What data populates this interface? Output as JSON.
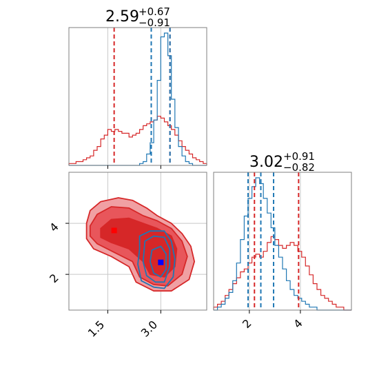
{
  "chart_data": {
    "type": "corner",
    "colors": {
      "red_series": "#d62728",
      "blue_series": "#1f77b4",
      "red_fill_light": "#f0a0a3",
      "red_fill_mid": "#e8565b",
      "red_fill_dark": "#d62728",
      "red_marker": "#ff0000",
      "blue_marker": "#0000ff",
      "grid": "#c8c8c8",
      "frame": "#7f7f7f"
    },
    "panels": {
      "hist_x": {
        "title": {
          "median": "2.59",
          "plus": "+0.67",
          "minus": "−0.91"
        },
        "xlim": [
          0.4,
          4.3
        ],
        "grid_x": [
          1.5,
          3.0
        ],
        "red_quantiles": [
          1.68,
          2.59,
          3.26
        ],
        "blue_quantiles": [
          2.73,
          3.0,
          3.26
        ],
        "bins": [
          0.4,
          0.5,
          0.6,
          0.7,
          0.8,
          0.9,
          1.0,
          1.1,
          1.2,
          1.3,
          1.4,
          1.5,
          1.6,
          1.7,
          1.8,
          1.9,
          2.0,
          2.1,
          2.2,
          2.3,
          2.4,
          2.5,
          2.6,
          2.7,
          2.8,
          2.9,
          3.0,
          3.1,
          3.2,
          3.3,
          3.4,
          3.5,
          3.6,
          3.7,
          3.8,
          3.9,
          4.0,
          4.1,
          4.2,
          4.3
        ],
        "red_counts": [
          1,
          1,
          2,
          2,
          3,
          4,
          5,
          8,
          10,
          14,
          16,
          19,
          18,
          19,
          18,
          17,
          17,
          15,
          16,
          17,
          19,
          21,
          22,
          23,
          24,
          26,
          25,
          23,
          21,
          19,
          16,
          13,
          10,
          8,
          6,
          4,
          3,
          2,
          1
        ],
        "blue_counts": [
          0,
          0,
          0,
          0,
          0,
          0,
          0,
          0,
          0,
          0,
          0,
          0,
          0,
          0,
          0,
          0,
          0,
          0,
          0,
          0,
          1,
          2,
          6,
          12,
          24,
          45,
          68,
          70,
          58,
          35,
          20,
          10,
          5,
          2,
          1,
          0,
          0,
          0,
          0
        ]
      },
      "hist_y": {
        "title": {
          "median": "3.02",
          "plus": "+0.91",
          "minus": "−0.82"
        },
        "xlim": [
          0.6,
          6.0
        ],
        "ticks": [
          "2",
          "4"
        ],
        "tick_values": [
          2,
          4
        ],
        "red_quantiles": [
          2.2,
          3.02,
          3.93
        ],
        "blue_quantiles": [
          1.95,
          2.45,
          2.95
        ],
        "bins": [
          0.6,
          0.75,
          0.9,
          1.05,
          1.2,
          1.35,
          1.5,
          1.65,
          1.8,
          1.95,
          2.1,
          2.25,
          2.4,
          2.55,
          2.7,
          2.85,
          3.0,
          3.15,
          3.3,
          3.45,
          3.6,
          3.75,
          3.9,
          4.05,
          4.2,
          4.35,
          4.5,
          4.65,
          4.8,
          4.95,
          5.1,
          5.25,
          5.4,
          5.55,
          5.7,
          5.85,
          6.0
        ],
        "red_counts": [
          1,
          2,
          3,
          5,
          7,
          9,
          11,
          13,
          14,
          16,
          18,
          19,
          18,
          20,
          23,
          25,
          24,
          22,
          21,
          22,
          23,
          22,
          20,
          18,
          15,
          12,
          9,
          7,
          5,
          4,
          3,
          2,
          1,
          1,
          0,
          0
        ],
        "blue_counts": [
          0,
          1,
          2,
          4,
          6,
          10,
          16,
          24,
          32,
          38,
          42,
          45,
          43,
          38,
          33,
          28,
          22,
          18,
          14,
          10,
          7,
          5,
          4,
          3,
          2,
          1,
          1,
          0,
          0,
          0,
          0,
          0,
          0,
          0,
          0,
          0
        ]
      },
      "joint": {
        "xlim": [
          0.4,
          4.3
        ],
        "ylim": [
          0.6,
          6.0
        ],
        "x_ticks": [
          "1.5",
          "3.0"
        ],
        "x_tick_values": [
          1.5,
          3.0
        ],
        "y_ticks": [
          "2",
          "4"
        ],
        "y_tick_values": [
          2,
          4
        ],
        "red_point": [
          1.68,
          3.72
        ],
        "blue_point": [
          3.0,
          2.47
        ],
        "red_contours": [
          [
            [
              0.9,
              4.0
            ],
            [
              1.0,
              4.5
            ],
            [
              1.3,
              4.85
            ],
            [
              1.8,
              5.0
            ],
            [
              2.2,
              4.9
            ],
            [
              2.6,
              4.6
            ],
            [
              2.9,
              4.3
            ],
            [
              3.3,
              4.0
            ],
            [
              3.6,
              3.6
            ],
            [
              3.85,
              3.1
            ],
            [
              3.95,
              2.5
            ],
            [
              3.8,
              1.8
            ],
            [
              3.3,
              1.35
            ],
            [
              2.8,
              1.35
            ],
            [
              2.3,
              1.7
            ],
            [
              2.1,
              2.3
            ],
            [
              1.6,
              2.7
            ],
            [
              1.1,
              3.0
            ],
            [
              0.9,
              3.4
            ]
          ],
          [
            [
              1.0,
              3.9
            ],
            [
              1.2,
              4.35
            ],
            [
              1.6,
              4.65
            ],
            [
              2.1,
              4.6
            ],
            [
              2.5,
              4.3
            ],
            [
              2.9,
              4.1
            ],
            [
              3.3,
              3.8
            ],
            [
              3.6,
              3.3
            ],
            [
              3.75,
              2.7
            ],
            [
              3.6,
              2.0
            ],
            [
              3.2,
              1.55
            ],
            [
              2.8,
              1.6
            ],
            [
              2.4,
              1.9
            ],
            [
              2.2,
              2.5
            ],
            [
              1.7,
              2.85
            ],
            [
              1.2,
              3.2
            ],
            [
              1.0,
              3.5
            ]
          ],
          [
            [
              1.3,
              3.8
            ],
            [
              1.6,
              4.15
            ],
            [
              2.1,
              4.2
            ],
            [
              2.5,
              4.0
            ],
            [
              2.9,
              3.8
            ],
            [
              3.3,
              3.5
            ],
            [
              3.45,
              3.0
            ],
            [
              3.4,
              2.3
            ],
            [
              3.1,
              1.9
            ],
            [
              2.7,
              2.0
            ],
            [
              2.5,
              2.5
            ],
            [
              2.1,
              3.0
            ],
            [
              1.6,
              3.25
            ],
            [
              1.3,
              3.45
            ]
          ],
          [
            [
              2.6,
              3.0
            ],
            [
              2.9,
              3.2
            ],
            [
              3.2,
              3.0
            ],
            [
              3.3,
              2.5
            ],
            [
              3.1,
              2.1
            ],
            [
              2.8,
              2.1
            ],
            [
              2.6,
              2.5
            ]
          ]
        ],
        "blue_contours": [
          [
            [
              2.4,
              3.5
            ],
            [
              2.7,
              3.7
            ],
            [
              3.1,
              3.7
            ],
            [
              3.3,
              3.3
            ],
            [
              3.4,
              2.6
            ],
            [
              3.35,
              1.9
            ],
            [
              3.1,
              1.45
            ],
            [
              2.8,
              1.5
            ],
            [
              2.45,
              1.75
            ],
            [
              2.35,
              2.4
            ],
            [
              2.4,
              3.0
            ]
          ],
          [
            [
              2.55,
              3.3
            ],
            [
              2.8,
              3.5
            ],
            [
              3.1,
              3.45
            ],
            [
              3.25,
              3.0
            ],
            [
              3.25,
              2.3
            ],
            [
              3.1,
              1.7
            ],
            [
              2.85,
              1.7
            ],
            [
              2.6,
              1.95
            ],
            [
              2.5,
              2.5
            ]
          ],
          [
            [
              2.75,
              2.95
            ],
            [
              3.0,
              3.1
            ],
            [
              3.15,
              2.8
            ],
            [
              3.15,
              2.2
            ],
            [
              3.0,
              1.9
            ],
            [
              2.8,
              2.05
            ],
            [
              2.7,
              2.5
            ]
          ]
        ]
      }
    }
  }
}
